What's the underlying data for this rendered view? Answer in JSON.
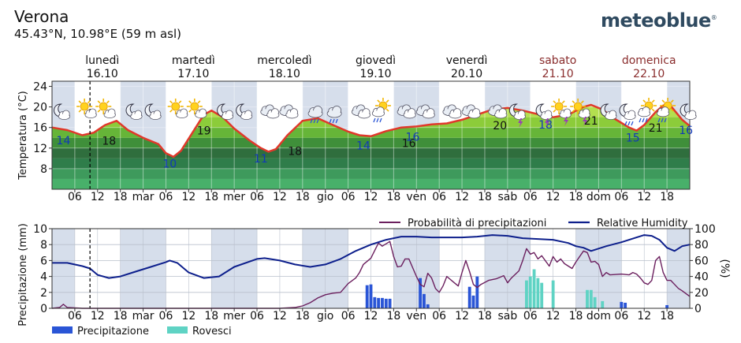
{
  "location": {
    "name": "Verona",
    "coords": "45.43°N, 10.98°E (59 m asl)"
  },
  "brand": "meteoblue",
  "colors": {
    "temp_line": "#e0382b",
    "night_band": "#cfd8e8",
    "precip_bar": "#2a55d6",
    "shower_bar": "#5fd3c4",
    "precip_prob_line": "#6b1f5e",
    "humidity_line": "#0d1f8c"
  },
  "days": [
    {
      "name": "lunedì",
      "date": "16.10",
      "weekend": false
    },
    {
      "name": "martedì",
      "date": "17.10",
      "weekend": false
    },
    {
      "name": "mercoledì",
      "date": "18.10",
      "weekend": false
    },
    {
      "name": "giovedì",
      "date": "19.10",
      "weekend": false
    },
    {
      "name": "venerdì",
      "date": "20.10",
      "weekend": false
    },
    {
      "name": "sabato",
      "date": "21.10",
      "weekend": true
    },
    {
      "name": "domenica",
      "date": "22.10",
      "weekend": true
    }
  ],
  "x_ticks": [
    "06",
    "12",
    "18",
    "mar",
    "06",
    "12",
    "18",
    "mer",
    "06",
    "12",
    "18",
    "gio",
    "06",
    "12",
    "18",
    "ven",
    "06",
    "12",
    "18",
    "sab",
    "06",
    "12",
    "18",
    "dom",
    "06",
    "12",
    "18"
  ],
  "chart_data": [
    {
      "type": "line",
      "title": "",
      "xlabel": "",
      "ylabel": "Temperatura (°C)",
      "ylim": [
        4,
        25
      ],
      "yticks": [
        8,
        12,
        16,
        20,
        24
      ],
      "x_unit": "hours since lunedì 16.10 00:00",
      "xlim": [
        0,
        168
      ],
      "now_marker_hour": 10,
      "series": [
        {
          "points": [
            [
              0,
              16
            ],
            [
              4,
              15.5
            ],
            [
              8,
              14.5
            ],
            [
              11,
              15
            ],
            [
              14,
              16.5
            ],
            [
              17,
              17.3
            ],
            [
              20,
              15.5
            ],
            [
              24,
              14
            ],
            [
              28,
              12.8
            ],
            [
              30,
              11
            ],
            [
              32,
              10.3
            ],
            [
              34,
              11.5
            ],
            [
              37,
              15
            ],
            [
              40,
              18.5
            ],
            [
              42,
              19.3
            ],
            [
              45,
              18
            ],
            [
              48,
              15.8
            ],
            [
              52,
              13.5
            ],
            [
              55,
              12
            ],
            [
              57,
              11.3
            ],
            [
              59,
              11.8
            ],
            [
              62,
              14.5
            ],
            [
              66,
              17.3
            ],
            [
              70,
              17.8
            ],
            [
              74,
              16.5
            ],
            [
              78,
              15.2
            ],
            [
              81,
              14.5
            ],
            [
              84,
              14.3
            ],
            [
              88,
              15.3
            ],
            [
              92,
              16
            ],
            [
              96,
              16.2
            ],
            [
              100,
              16.6
            ],
            [
              104,
              16.8
            ],
            [
              108,
              17.5
            ],
            [
              112,
              18.5
            ],
            [
              116,
              19.5
            ],
            [
              120,
              19.8
            ],
            [
              124,
              19.3
            ],
            [
              128,
              18.6
            ],
            [
              132,
              18
            ],
            [
              136,
              18.5
            ],
            [
              140,
              20
            ],
            [
              142,
              20.4
            ],
            [
              145,
              19.5
            ],
            [
              148,
              17.8
            ],
            [
              152,
              16
            ],
            [
              154,
              15.4
            ],
            [
              156,
              16.5
            ],
            [
              159,
              19
            ],
            [
              161,
              20.3
            ],
            [
              163,
              20.2
            ],
            [
              166,
              17.5
            ],
            [
              168,
              16.3
            ]
          ]
        }
      ],
      "labels": [
        {
          "hour": 3,
          "value": "14",
          "kind": "min"
        },
        {
          "hour": 15,
          "value": "18",
          "kind": "max"
        },
        {
          "hour": 31,
          "value": "10",
          "kind": "min"
        },
        {
          "hour": 40,
          "value": "19",
          "kind": "max"
        },
        {
          "hour": 55,
          "value": "11",
          "kind": "min"
        },
        {
          "hour": 64,
          "value": "18",
          "kind": "max"
        },
        {
          "hour": 82,
          "value": "14",
          "kind": "min"
        },
        {
          "hour": 94,
          "value": "16",
          "kind": "max"
        },
        {
          "hour": 95,
          "value": "16",
          "kind": "min"
        },
        {
          "hour": 118,
          "value": "20",
          "kind": "max"
        },
        {
          "hour": 130,
          "value": "18",
          "kind": "min"
        },
        {
          "hour": 142,
          "value": "21",
          "kind": "max"
        },
        {
          "hour": 153,
          "value": "15",
          "kind": "min"
        },
        {
          "hour": 159,
          "value": "21",
          "kind": "max"
        },
        {
          "hour": 167,
          "value": "16",
          "kind": "min"
        }
      ],
      "weather_icons": [
        {
          "hour": 3,
          "icon": "moon-cloud-icon"
        },
        {
          "hour": 10,
          "icon": "sun-cloud-icon"
        },
        {
          "hour": 15,
          "icon": "sun-cloud-icon"
        },
        {
          "hour": 22,
          "icon": "moon-cloud-icon"
        },
        {
          "hour": 27,
          "icon": "moon-cloud-icon"
        },
        {
          "hour": 34,
          "icon": "sun-cloud-icon"
        },
        {
          "hour": 39,
          "icon": "sun-cloud-icon"
        },
        {
          "hour": 46,
          "icon": "moon-cloud-icon"
        },
        {
          "hour": 51,
          "icon": "moon-cloud-icon"
        },
        {
          "hour": 58,
          "icon": "cloud-icon"
        },
        {
          "hour": 63,
          "icon": "cloud-icon"
        },
        {
          "hour": 70,
          "icon": "rain-cloud-icon"
        },
        {
          "hour": 75,
          "icon": "rain-cloud-icon"
        },
        {
          "hour": 82,
          "icon": "cloud-icon"
        },
        {
          "hour": 87,
          "icon": "sun-rain-icon"
        },
        {
          "hour": 94,
          "icon": "cloud-icon"
        },
        {
          "hour": 99,
          "icon": "cloud-icon"
        },
        {
          "hour": 106,
          "icon": "cloud-icon"
        },
        {
          "hour": 111,
          "icon": "cloud-icon"
        },
        {
          "hour": 118,
          "icon": "cloud-icon"
        },
        {
          "hour": 123,
          "icon": "moon-storm-icon"
        },
        {
          "hour": 130,
          "icon": "moon-storm-icon"
        },
        {
          "hour": 135,
          "icon": "sun-storm-icon"
        },
        {
          "hour": 140,
          "icon": "sun-storm-icon"
        },
        {
          "hour": 147,
          "icon": "moon-cloud-icon"
        },
        {
          "hour": 152,
          "icon": "moon-rain-icon"
        },
        {
          "hour": 157,
          "icon": "sun-rain-icon"
        },
        {
          "hour": 162,
          "icon": "sun-rain-icon"
        },
        {
          "hour": 168,
          "icon": "moon-cloud-icon"
        }
      ]
    },
    {
      "type": "bar",
      "title": "",
      "xlabel": "",
      "ylabel": "Precipitazione (mm)",
      "y2label": "(%)",
      "ylim": [
        0,
        10
      ],
      "y2lim": [
        0,
        100
      ],
      "yticks": [
        0,
        2,
        4,
        6,
        8,
        10
      ],
      "y2ticks": [
        0,
        20,
        40,
        60,
        80,
        100
      ],
      "legend_top": [
        "Probabilità di precipitazioni",
        "Relative Humidity"
      ],
      "legend_bottom": [
        "Precipitazione",
        "Rovesci"
      ],
      "precipitation": [
        [
          83,
          2.9
        ],
        [
          84,
          3.0
        ],
        [
          85,
          1.4
        ],
        [
          86,
          1.3
        ],
        [
          87,
          1.3
        ],
        [
          88,
          1.2
        ],
        [
          89,
          1.2
        ],
        [
          97,
          3.8
        ],
        [
          98,
          1.8
        ],
        [
          99,
          0.5
        ],
        [
          110,
          2.7
        ],
        [
          111,
          1.6
        ],
        [
          112,
          4.0
        ],
        [
          150,
          0.8
        ],
        [
          151,
          0.7
        ],
        [
          162,
          0.4
        ]
      ],
      "showers": [
        [
          125,
          3.5
        ],
        [
          126,
          4.0
        ],
        [
          127,
          4.9
        ],
        [
          128,
          3.8
        ],
        [
          129,
          3.2
        ],
        [
          132,
          3.5
        ],
        [
          141,
          2.3
        ],
        [
          142,
          2.3
        ],
        [
          143,
          1.4
        ],
        [
          145,
          0.9
        ]
      ],
      "precip_probability": [
        [
          0,
          0
        ],
        [
          2,
          1
        ],
        [
          3,
          5
        ],
        [
          4,
          1
        ],
        [
          8,
          0
        ],
        [
          40,
          0
        ],
        [
          60,
          0
        ],
        [
          64,
          1
        ],
        [
          66,
          3
        ],
        [
          68,
          7
        ],
        [
          70,
          13
        ],
        [
          72,
          17
        ],
        [
          74,
          19
        ],
        [
          76,
          20
        ],
        [
          78,
          31
        ],
        [
          80,
          38
        ],
        [
          81,
          45
        ],
        [
          82,
          55
        ],
        [
          84,
          63
        ],
        [
          86,
          82
        ],
        [
          87,
          78
        ],
        [
          89,
          84
        ],
        [
          90,
          65
        ],
        [
          91,
          52
        ],
        [
          92,
          53
        ],
        [
          93,
          62
        ],
        [
          94,
          62
        ],
        [
          96,
          40
        ],
        [
          97,
          30
        ],
        [
          98,
          27
        ],
        [
          99,
          44
        ],
        [
          100,
          38
        ],
        [
          101,
          25
        ],
        [
          102,
          20
        ],
        [
          103,
          28
        ],
        [
          104,
          40
        ],
        [
          106,
          32
        ],
        [
          107,
          28
        ],
        [
          108,
          45
        ],
        [
          109,
          60
        ],
        [
          110,
          46
        ],
        [
          111,
          30
        ],
        [
          112,
          26
        ],
        [
          113,
          30
        ],
        [
          115,
          35
        ],
        [
          117,
          37
        ],
        [
          119,
          41
        ],
        [
          120,
          32
        ],
        [
          121,
          38
        ],
        [
          123,
          47
        ],
        [
          124,
          60
        ],
        [
          125,
          75
        ],
        [
          126,
          68
        ],
        [
          127,
          70
        ],
        [
          128,
          62
        ],
        [
          129,
          66
        ],
        [
          131,
          53
        ],
        [
          132,
          65
        ],
        [
          133,
          58
        ],
        [
          134,
          62
        ],
        [
          135,
          56
        ],
        [
          137,
          50
        ],
        [
          138,
          58
        ],
        [
          140,
          72
        ],
        [
          141,
          70
        ],
        [
          142,
          58
        ],
        [
          143,
          59
        ],
        [
          144,
          55
        ],
        [
          145,
          40
        ],
        [
          146,
          45
        ],
        [
          147,
          42
        ],
        [
          150,
          43
        ],
        [
          152,
          42
        ],
        [
          153,
          45
        ],
        [
          154,
          43
        ],
        [
          155,
          38
        ],
        [
          156,
          32
        ],
        [
          157,
          30
        ],
        [
          158,
          35
        ],
        [
          159,
          60
        ],
        [
          160,
          65
        ],
        [
          161,
          45
        ],
        [
          162,
          35
        ],
        [
          163,
          35
        ],
        [
          164,
          30
        ],
        [
          165,
          25
        ],
        [
          166,
          22
        ],
        [
          168,
          15
        ]
      ],
      "humidity": [
        [
          0,
          57
        ],
        [
          4,
          57
        ],
        [
          8,
          53
        ],
        [
          10,
          50
        ],
        [
          12,
          42
        ],
        [
          15,
          38
        ],
        [
          18,
          40
        ],
        [
          22,
          46
        ],
        [
          26,
          52
        ],
        [
          30,
          58
        ],
        [
          31,
          60
        ],
        [
          33,
          57
        ],
        [
          36,
          45
        ],
        [
          40,
          38
        ],
        [
          44,
          40
        ],
        [
          48,
          52
        ],
        [
          54,
          62
        ],
        [
          56,
          63
        ],
        [
          60,
          60
        ],
        [
          64,
          55
        ],
        [
          68,
          52
        ],
        [
          72,
          55
        ],
        [
          76,
          62
        ],
        [
          80,
          72
        ],
        [
          84,
          80
        ],
        [
          88,
          86
        ],
        [
          92,
          90
        ],
        [
          96,
          90
        ],
        [
          100,
          89
        ],
        [
          104,
          89
        ],
        [
          108,
          89
        ],
        [
          112,
          90
        ],
        [
          116,
          92
        ],
        [
          120,
          91
        ],
        [
          124,
          88
        ],
        [
          128,
          87
        ],
        [
          132,
          86
        ],
        [
          136,
          82
        ],
        [
          138,
          78
        ],
        [
          140,
          76
        ],
        [
          142,
          72
        ],
        [
          146,
          78
        ],
        [
          150,
          83
        ],
        [
          154,
          89
        ],
        [
          156,
          92
        ],
        [
          158,
          91
        ],
        [
          160,
          86
        ],
        [
          162,
          76
        ],
        [
          164,
          72
        ],
        [
          166,
          78
        ],
        [
          168,
          80
        ]
      ]
    }
  ]
}
